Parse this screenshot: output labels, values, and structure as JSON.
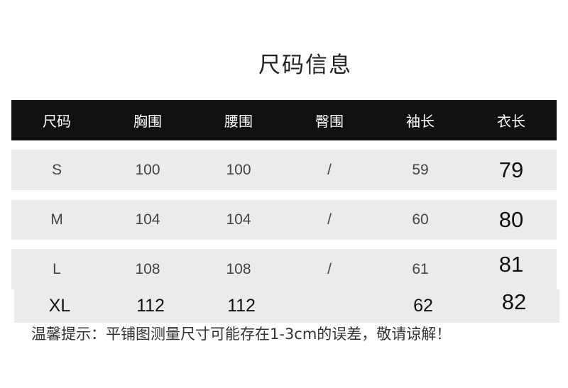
{
  "title": "尺码信息",
  "table": {
    "headers": [
      "尺码",
      "胸围",
      "腰围",
      "臀围",
      "袖长",
      "衣长"
    ],
    "rows": [
      [
        "S",
        "100",
        "100",
        "/",
        "59",
        "79"
      ],
      [
        "M",
        "104",
        "104",
        "/",
        "60",
        "80"
      ],
      [
        "L",
        "108",
        "108",
        "/",
        "61",
        "81"
      ],
      [
        "XL",
        "112",
        "112",
        "",
        "62",
        "82"
      ]
    ]
  },
  "note": "温馨提示：平铺图测量尺寸可能存在1-3cm的误差，敬请谅解！",
  "colors": {
    "header_bg": "#111111",
    "row_bg": "#ebebeb"
  }
}
